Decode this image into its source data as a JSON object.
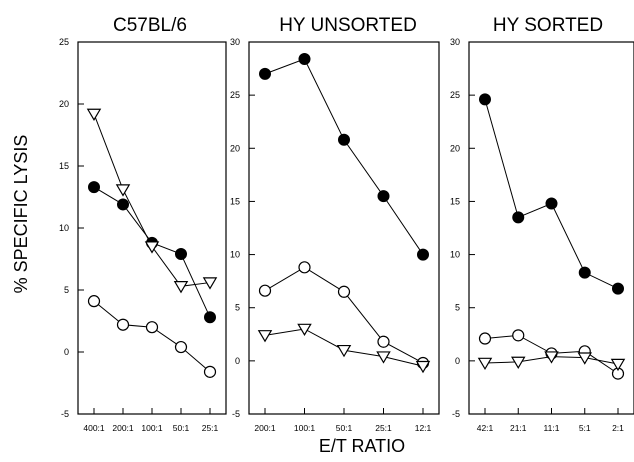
{
  "chart_data": {
    "type": "line",
    "ylabel": "% SPECIFIC LYSIS",
    "xlabel": "E/T RATIO",
    "panels": [
      {
        "title": "C57BL/6",
        "categories": [
          "400:1",
          "200:1",
          "100:1",
          "50:1",
          "25:1"
        ],
        "ylim": [
          -5,
          25
        ],
        "yticks": [
          -5,
          0,
          5,
          10,
          15,
          20,
          25
        ],
        "series": [
          {
            "marker": "filled-circle",
            "values": [
              13.3,
              11.9,
              8.8,
              7.9,
              2.8
            ]
          },
          {
            "marker": "open-triangle",
            "values": [
              19.2,
              13.1,
              8.5,
              5.3,
              5.6
            ]
          },
          {
            "marker": "open-circle",
            "values": [
              4.1,
              2.2,
              2.0,
              0.4,
              -1.6
            ]
          }
        ]
      },
      {
        "title": "HY UNSORTED",
        "categories": [
          "200:1",
          "100:1",
          "50:1",
          "25:1",
          "12:1"
        ],
        "ylim": [
          -5,
          30
        ],
        "yticks": [
          -5,
          0,
          5,
          10,
          15,
          20,
          25,
          30
        ],
        "series": [
          {
            "marker": "filled-circle",
            "values": [
              27.0,
              28.4,
              20.8,
              15.5,
              10.0
            ]
          },
          {
            "marker": "open-circle",
            "values": [
              6.6,
              8.8,
              6.5,
              1.8,
              -0.2
            ]
          },
          {
            "marker": "open-triangle",
            "values": [
              2.4,
              3.0,
              1.0,
              0.4,
              -0.5
            ]
          }
        ]
      },
      {
        "title": "HY SORTED",
        "categories": [
          "42:1",
          "21:1",
          "11:1",
          "5:1",
          "2:1"
        ],
        "ylim": [
          -5,
          30
        ],
        "yticks": [
          -5,
          0,
          5,
          10,
          15,
          20,
          25,
          30
        ],
        "series": [
          {
            "marker": "filled-circle",
            "values": [
              24.6,
              13.5,
              14.8,
              8.3,
              6.8
            ]
          },
          {
            "marker": "open-circle",
            "values": [
              2.1,
              2.4,
              0.7,
              0.9,
              -1.2
            ]
          },
          {
            "marker": "open-triangle",
            "values": [
              -0.2,
              -0.1,
              0.4,
              0.3,
              -0.3
            ]
          }
        ]
      }
    ]
  }
}
